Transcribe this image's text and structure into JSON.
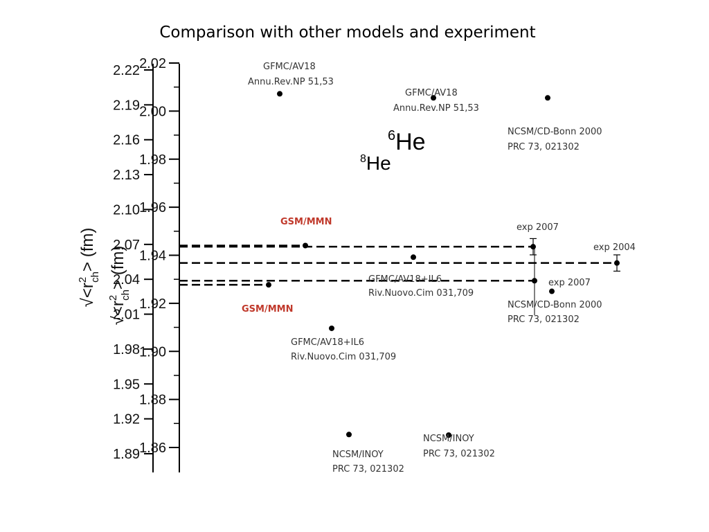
{
  "title": "Comparison with other models and experiment",
  "colors": {
    "gsm": "#c0392b",
    "axis": "#000000",
    "text": "#333333"
  },
  "chart_data": [
    {
      "type": "scatter",
      "name_he": "6He",
      "axis_label": {
        "prefix": "√<r",
        "sup": "2",
        "sub": "ch",
        "suffix": "> (fm)"
      },
      "ylim": [
        1.89,
        2.22
      ],
      "ticks": [
        2.22,
        2.19,
        2.16,
        2.13,
        2.1,
        2.07,
        2.04,
        2.01,
        1.98,
        1.95,
        1.92,
        1.89
      ],
      "tick_labels": [
        "2.22",
        "2.19",
        "2.16",
        "2.13",
        "2.10",
        "2.07",
        "2.04",
        "2.01",
        "1.98",
        "1.95",
        "1.92",
        "1.89"
      ],
      "points": [
        {
          "label1": "GFMC/AV18",
          "label2": "Annu.Rev.NP 51,53",
          "y": 2.196
        },
        {
          "label1": "NCSM/CD-Bonn 2000",
          "label2": "PRC 73, 021302",
          "y": 2.196
        },
        {
          "label1": "GSM/MMN",
          "label2": "",
          "y": 2.069
        },
        {
          "label1": "GFMC/AV18+IL6",
          "label2": "Riv.Nuovo.Cim 031,709",
          "y": 2.059
        },
        {
          "label1": "exp 2004",
          "label2": "",
          "y": 2.054,
          "err": 0.007
        },
        {
          "label1": "exp 2007",
          "label2": "",
          "y": 2.068,
          "err": 0.007
        },
        {
          "label1": "NCSM/INOY",
          "label2": "PRC 73, 021302",
          "y": 1.906
        }
      ]
    },
    {
      "type": "scatter",
      "name_he": "8He",
      "axis_label": {
        "prefix": "√<r",
        "sup": "2",
        "sub": "ch",
        "suffix": "> (fm)"
      },
      "ylim": [
        1.852,
        2.02
      ],
      "ticks": [
        2.02,
        2.0,
        1.98,
        1.96,
        1.94,
        1.92,
        1.9,
        1.88,
        1.86
      ],
      "tick_labels": [
        "2.02",
        "2.00",
        "1.98",
        "1.96",
        "1.94",
        "1.92",
        "1.90",
        "1.88",
        "1.86"
      ],
      "points": [
        {
          "label1": "GFMC/AV18",
          "label2": "Annu.Rev.NP 51,53",
          "y": 2.0072
        },
        {
          "label1": "GSM/MMN",
          "label2": "",
          "y": 1.9277
        },
        {
          "label1": "GFMC/AV18+IL6",
          "label2": "Riv.Nuovo.Cim 031,709",
          "y": 1.9096
        },
        {
          "label1": "exp 2007",
          "label2": "",
          "y": 1.9294,
          "err": 0.0
        },
        {
          "label1": "NCSM/CD-Bonn 2000",
          "label2": "PRC 73, 021302",
          "y": 1.925
        },
        {
          "label1": "NCSM/INOY",
          "label2": "PRC 73, 021302",
          "y": 1.8654
        }
      ]
    }
  ]
}
